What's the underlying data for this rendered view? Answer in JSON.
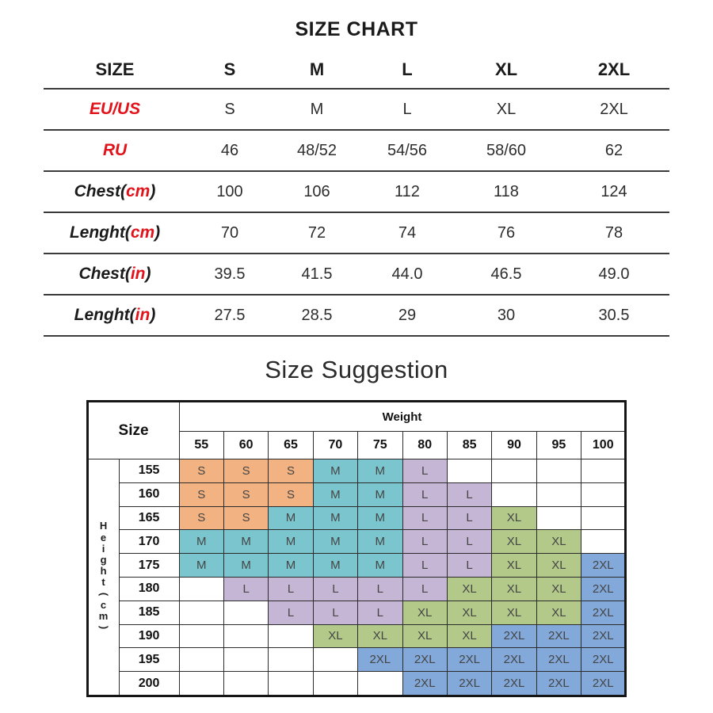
{
  "page": {
    "chart_title": "SIZE CHART",
    "suggestion_title": "Size Suggestion"
  },
  "colors": {
    "accent_red": "#e2121b",
    "grid_line": "#3a3a3a"
  },
  "size_chart": {
    "header": [
      "SIZE",
      "S",
      "M",
      "L",
      "XL",
      "2XL"
    ],
    "rows": [
      {
        "label_parts": [
          {
            "t": "EU/US",
            "red": true
          }
        ],
        "values": [
          "S",
          "M",
          "L",
          "XL",
          "2XL"
        ]
      },
      {
        "label_parts": [
          {
            "t": "RU",
            "red": true
          }
        ],
        "values": [
          "46",
          "48/52",
          "54/56",
          "58/60",
          "62"
        ]
      },
      {
        "label_parts": [
          {
            "t": "Chest("
          },
          {
            "t": "cm",
            "red": true
          },
          {
            "t": ")"
          }
        ],
        "values": [
          "100",
          "106",
          "112",
          "118",
          "124"
        ]
      },
      {
        "label_parts": [
          {
            "t": "Lenght("
          },
          {
            "t": "cm",
            "red": true
          },
          {
            "t": ")"
          }
        ],
        "values": [
          "70",
          "72",
          "74",
          "76",
          "78"
        ]
      },
      {
        "label_parts": [
          {
            "t": "Chest("
          },
          {
            "t": "in",
            "red": true
          },
          {
            "t": ")"
          }
        ],
        "values": [
          "39.5",
          "41.5",
          "44.0",
          "46.5",
          "49.0"
        ]
      },
      {
        "label_parts": [
          {
            "t": "Lenght("
          },
          {
            "t": "in",
            "red": true
          },
          {
            "t": ")"
          }
        ],
        "values": [
          "27.5",
          "28.5",
          "29",
          "30",
          "30.5"
        ]
      }
    ]
  },
  "size_suggestion": {
    "corner_label": "Size",
    "weight_label": "Weight",
    "weights": [
      "55",
      "60",
      "65",
      "70",
      "75",
      "80",
      "85",
      "90",
      "95",
      "100"
    ],
    "height_axis_chars": [
      "H",
      "e",
      "i",
      "g",
      "h",
      "t",
      "(",
      "c",
      "m",
      ")"
    ],
    "rows": [
      {
        "height": "155",
        "cells": [
          "S",
          "S",
          "S",
          "M",
          "M",
          "L",
          "",
          "",
          "",
          ""
        ]
      },
      {
        "height": "160",
        "cells": [
          "S",
          "S",
          "S",
          "M",
          "M",
          "L",
          "L",
          "",
          "",
          ""
        ]
      },
      {
        "height": "165",
        "cells": [
          "S",
          "S",
          "M",
          "M",
          "M",
          "L",
          "L",
          "XL",
          "",
          ""
        ]
      },
      {
        "height": "170",
        "cells": [
          "M",
          "M",
          "M",
          "M",
          "M",
          "L",
          "L",
          "XL",
          "XL",
          ""
        ]
      },
      {
        "height": "175",
        "cells": [
          "M",
          "M",
          "M",
          "M",
          "M",
          "L",
          "L",
          "XL",
          "XL",
          "2XL"
        ]
      },
      {
        "height": "180",
        "cells": [
          "",
          "L",
          "L",
          "L",
          "L",
          "L",
          "XL",
          "XL",
          "XL",
          "2XL"
        ]
      },
      {
        "height": "185",
        "cells": [
          "",
          "",
          "L",
          "L",
          "L",
          "XL",
          "XL",
          "XL",
          "XL",
          "2XL"
        ]
      },
      {
        "height": "190",
        "cells": [
          "",
          "",
          "",
          "XL",
          "XL",
          "XL",
          "XL",
          "2XL",
          "2XL",
          "2XL"
        ]
      },
      {
        "height": "195",
        "cells": [
          "",
          "",
          "",
          "",
          "2XL",
          "2XL",
          "2XL",
          "2XL",
          "2XL",
          "2XL"
        ]
      },
      {
        "height": "200",
        "cells": [
          "",
          "",
          "",
          "",
          "",
          "2XL",
          "2XL",
          "2XL",
          "2XL",
          "2XL"
        ]
      }
    ],
    "size_colors": {
      "S": "#f3b281",
      "M": "#7bc6ce",
      "L": "#c6b6d5",
      "XL": "#b3c98a",
      "2XL": "#82a9da"
    }
  },
  "chart_data": [
    {
      "type": "table",
      "title": "SIZE CHART",
      "columns": [
        "SIZE",
        "S",
        "M",
        "L",
        "XL",
        "2XL"
      ],
      "rows": [
        [
          "EU/US",
          "S",
          "M",
          "L",
          "XL",
          "2XL"
        ],
        [
          "RU",
          "46",
          "48/52",
          "54/56",
          "58/60",
          "62"
        ],
        [
          "Chest(cm)",
          "100",
          "106",
          "112",
          "118",
          "124"
        ],
        [
          "Lenght(cm)",
          "70",
          "72",
          "74",
          "76",
          "78"
        ],
        [
          "Chest(in)",
          "39.5",
          "41.5",
          "44.0",
          "46.5",
          "49.0"
        ],
        [
          "Lenght(in)",
          "27.5",
          "28.5",
          "29",
          "30",
          "30.5"
        ]
      ]
    },
    {
      "type": "heatmap",
      "title": "Size Suggestion",
      "xlabel": "Weight",
      "ylabel": "Height(cm)",
      "x": [
        55,
        60,
        65,
        70,
        75,
        80,
        85,
        90,
        95,
        100
      ],
      "y": [
        155,
        160,
        165,
        170,
        175,
        180,
        185,
        190,
        195,
        200
      ],
      "values": [
        [
          "S",
          "S",
          "S",
          "M",
          "M",
          "L",
          "",
          "",
          "",
          ""
        ],
        [
          "S",
          "S",
          "S",
          "M",
          "M",
          "L",
          "L",
          "",
          "",
          ""
        ],
        [
          "S",
          "S",
          "M",
          "M",
          "M",
          "L",
          "L",
          "XL",
          "",
          ""
        ],
        [
          "M",
          "M",
          "M",
          "M",
          "M",
          "L",
          "L",
          "XL",
          "XL",
          ""
        ],
        [
          "M",
          "M",
          "M",
          "M",
          "M",
          "L",
          "L",
          "XL",
          "XL",
          "2XL"
        ],
        [
          "",
          "L",
          "L",
          "L",
          "L",
          "L",
          "XL",
          "XL",
          "XL",
          "2XL"
        ],
        [
          "",
          "",
          "L",
          "L",
          "L",
          "XL",
          "XL",
          "XL",
          "XL",
          "2XL"
        ],
        [
          "",
          "",
          "",
          "XL",
          "XL",
          "XL",
          "XL",
          "2XL",
          "2XL",
          "2XL"
        ],
        [
          "",
          "",
          "",
          "",
          "2XL",
          "2XL",
          "2XL",
          "2XL",
          "2XL",
          "2XL"
        ],
        [
          "",
          "",
          "",
          "",
          "",
          "2XL",
          "2XL",
          "2XL",
          "2XL",
          "2XL"
        ]
      ],
      "legend": {
        "S": "#f3b281",
        "M": "#7bc6ce",
        "L": "#c6b6d5",
        "XL": "#b3c98a",
        "2XL": "#82a9da"
      },
      "grid": true
    }
  ]
}
